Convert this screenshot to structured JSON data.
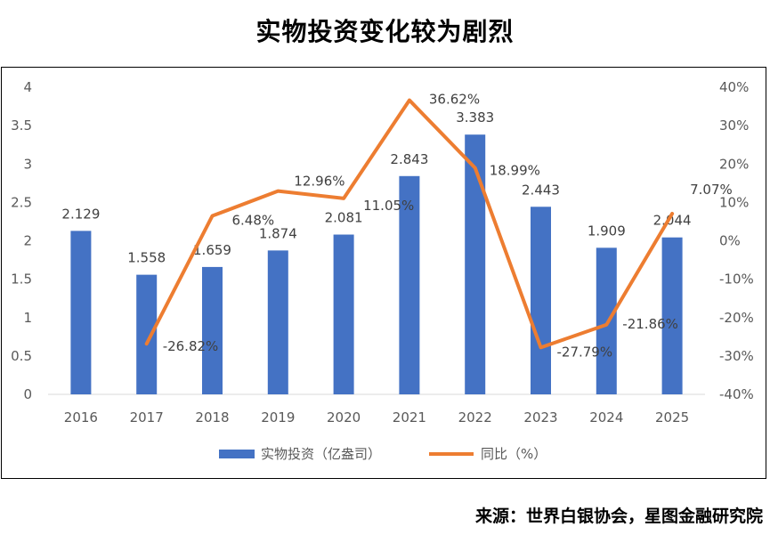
{
  "title": "实物投资变化较为剧烈",
  "source": "来源：世界白银协会，星图金融研究院",
  "chart_data": {
    "type": "bar",
    "categories": [
      "2016",
      "2017",
      "2018",
      "2019",
      "2020",
      "2021",
      "2022",
      "2023",
      "2024",
      "2025"
    ],
    "series": [
      {
        "name": "实物投资（亿盎司）",
        "type": "bar",
        "axis": "left",
        "color": "#4472C4",
        "values": [
          2.129,
          1.558,
          1.659,
          1.874,
          2.081,
          2.843,
          3.383,
          2.443,
          1.909,
          2.044
        ],
        "labels": [
          "2.129",
          "1.558",
          "1.659",
          "1.874",
          "2.081",
          "2.843",
          "3.383",
          "2.443",
          "1.909",
          "2.044"
        ]
      },
      {
        "name": "同比（%）",
        "type": "line",
        "axis": "right",
        "color": "#ED7D31",
        "values": [
          null,
          -26.82,
          6.48,
          12.96,
          11.05,
          36.62,
          18.99,
          -27.79,
          -21.86,
          7.07
        ],
        "labels": [
          null,
          "-26.82%",
          "6.48%",
          "12.96%",
          "11.05%",
          "36.62%",
          "18.99%",
          "-27.79%",
          "-21.86%",
          "7.07%"
        ]
      }
    ],
    "y_left": {
      "ylim": [
        0,
        4
      ],
      "ticks": [
        "0",
        "0.5",
        "1",
        "1.5",
        "2",
        "2.5",
        "3",
        "3.5",
        "4"
      ]
    },
    "y_right": {
      "ylim": [
        -40,
        40
      ],
      "ticks": [
        "-40%",
        "-30%",
        "-20%",
        "-10%",
        "0%",
        "10%",
        "20%",
        "30%",
        "40%"
      ]
    },
    "legend_position": "bottom",
    "grid": false
  }
}
